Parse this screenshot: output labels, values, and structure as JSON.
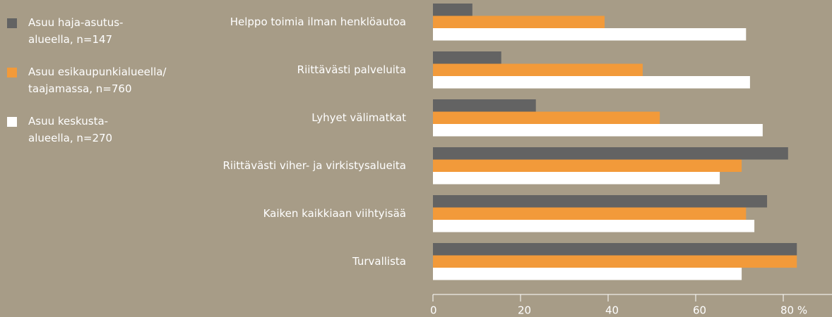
{
  "chart_data": {
    "type": "hbar",
    "categories": [
      "Helppo toimia ilman henklöautoa",
      "Riittävästi palveluita",
      "Lyhyet välimatkat",
      "Riittävästi viher- ja virkistysalueita",
      "Kaiken kaikkiaan viihtyisää",
      "Turvallista"
    ],
    "series": [
      {
        "name": "Asuu haja-asutus-\nalueella, n=147",
        "color": "#636363",
        "values": [
          9,
          15.6,
          23.5,
          81.1,
          76.3,
          83.1
        ]
      },
      {
        "name": "Asuu esikaupunkialueella/\ntaajamassa, n=760",
        "color": "#f29a3a",
        "values": [
          39.2,
          47.9,
          51.8,
          70.5,
          71.5,
          83.1
        ]
      },
      {
        "name": "Asuu keskusta-\nalueella, n=270",
        "color": "#ffffff",
        "values": [
          71.5,
          72.4,
          75.3,
          65.5,
          73.4,
          70.5
        ]
      }
    ],
    "xlim": [
      0,
      91
    ],
    "xticks": [
      0,
      20,
      40,
      60,
      {
        "value": 80,
        "label": "80 %"
      }
    ],
    "legend": "top-left"
  }
}
